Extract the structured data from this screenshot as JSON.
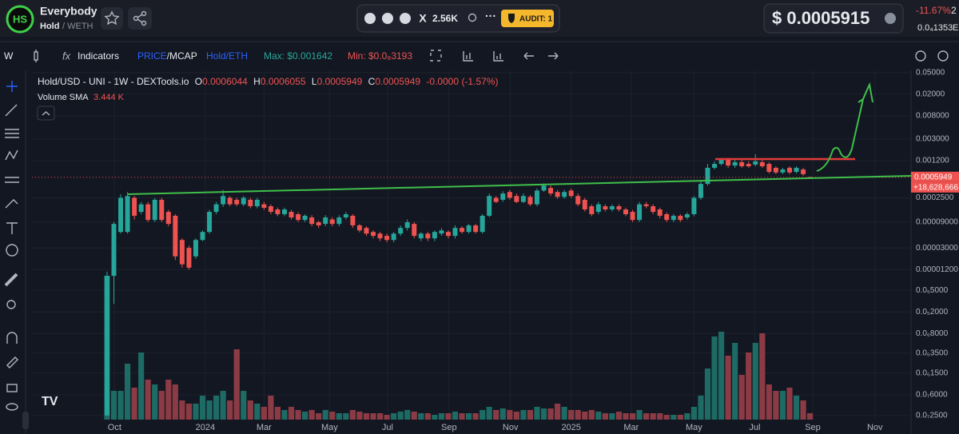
{
  "header": {
    "token_name": "Everybody",
    "pair_base": "Hold",
    "pair_quote": "/ WETH",
    "social_count": "2.56K",
    "audit": "AUDIT: 1",
    "price": "$ 0.0005915",
    "change": "-11.67%",
    "change_extra": "2",
    "sub_price": "0.0₄1353",
    "sub_extra": "E"
  },
  "toolbar": {
    "interval": "W",
    "indicators": "Indicators",
    "price": "PRICE",
    "mcap": "/MCAP",
    "pair": "Hold/ETH",
    "max": "Max: $0.001642",
    "min": "Min: $0.0₈3193"
  },
  "chart_data": {
    "type": "candlestick",
    "title": "Hold/USD - UNI - 1W - DEXTools.io",
    "ohlc_labels": [
      "O",
      "H",
      "L",
      "C"
    ],
    "change": "-0.0000 (-1.57%)",
    "volume_label": "Volume SMA",
    "volume_sma": "3.444 K",
    "price_badge_extra": "+18,628,666",
    "up_color": "#26a69a",
    "down_color": "#ef5350",
    "volume_up_color": "#1d6b64",
    "volume_down_color": "#8c3b45",
    "log_y": true,
    "ylim": [
      2.1e-08,
      0.055
    ],
    "yticks": [
      {
        "value": 0.05,
        "label": "0.05000"
      },
      {
        "value": 0.02,
        "label": "0.02000"
      },
      {
        "value": 0.008,
        "label": "0.008000"
      },
      {
        "value": 0.003,
        "label": "0.003000"
      },
      {
        "value": 0.0012,
        "label": "0.001200"
      },
      {
        "value": 0.00025,
        "label": "0.0002500"
      },
      {
        "value": 9e-05,
        "label": "0.00009000"
      },
      {
        "value": 3e-05,
        "label": "0.00003000"
      },
      {
        "value": 1.2e-05,
        "label": "0.00001200"
      },
      {
        "value": 5e-06,
        "label": "0.0₅5000"
      },
      {
        "value": 2e-06,
        "label": "0.0₅2000"
      },
      {
        "value": 8e-07,
        "label": "0.0₆8000"
      },
      {
        "value": 3.5e-07,
        "label": "0.0₆3500"
      },
      {
        "value": 1.5e-07,
        "label": "0.0₆1500"
      },
      {
        "value": 6e-08,
        "label": "0.0₇6000"
      },
      {
        "value": 2.5e-08,
        "label": "0.0₇2500"
      }
    ],
    "xlim": [
      -11,
      117.8
    ],
    "xticks": [
      {
        "value": 1.1,
        "label": "Oct"
      },
      {
        "value": 14.4,
        "label": "2024"
      },
      {
        "value": 23.0,
        "label": "Mar"
      },
      {
        "value": 32.6,
        "label": "May"
      },
      {
        "value": 41.1,
        "label": "Jul"
      },
      {
        "value": 50.1,
        "label": "Sep"
      },
      {
        "value": 59.1,
        "label": "Nov"
      },
      {
        "value": 68.0,
        "label": "2025"
      },
      {
        "value": 76.8,
        "label": "Mar"
      },
      {
        "value": 86.0,
        "label": "May"
      },
      {
        "value": 94.9,
        "label": "Jul"
      },
      {
        "value": 103.4,
        "label": "Sep"
      },
      {
        "value": 112.5,
        "label": "Nov"
      }
    ],
    "volume_lim": [
      0,
      50
    ],
    "candles": [
      [
        2.5e-08,
        1.1e-05,
        2.5e-08,
        9.2e-06
      ],
      [
        9.2e-06,
        9e-05,
        2.8e-06,
        8.3e-05
      ],
      [
        5.9e-05,
        0.00029,
        5.5e-05,
        0.00025
      ],
      [
        5.9e-05,
        0.00032,
        5.5e-05,
        0.00027
      ],
      [
        0.00025,
        0.00027,
        0.0001,
        0.000117
      ],
      [
        0.000138,
        0.00021,
        0.000125,
        0.00019
      ],
      [
        0.00019,
        0.00021,
        9e-05,
        9.8e-05
      ],
      [
        9.8e-05,
        0.00025,
        9e-05,
        0.00023
      ],
      [
        0.00023,
        0.00025,
        9e-05,
        9.8e-05
      ],
      [
        0.000138,
        0.00015,
        7.5e-05,
        8.3e-05
      ],
      [
        0.000117,
        0.000125,
        1.8e-05,
        2.1e-05
      ],
      [
        4.2e-05,
        4.5e-05,
        1.3e-05,
        1.5e-05
      ],
      [
        3e-05,
        3.3e-05,
        1.2e-05,
        1.3e-05
      ],
      [
        2.1e-05,
        4.5e-05,
        1.9e-05,
        4.2e-05
      ],
      [
        4.2e-05,
        6.3e-05,
        4e-05,
        5.9e-05
      ],
      [
        5.9e-05,
        0.00015,
        5.5e-05,
        0.000138
      ],
      [
        0.000138,
        0.00021,
        0.000125,
        0.00019
      ],
      [
        0.00019,
        0.00035,
        0.00017,
        0.00027
      ],
      [
        0.00025,
        0.00027,
        0.000175,
        0.00019
      ],
      [
        0.00023,
        0.00025,
        0.000175,
        0.00019
      ],
      [
        0.00019,
        0.00027,
        0.000175,
        0.00025
      ],
      [
        0.00023,
        0.00025,
        0.00016,
        0.000175
      ],
      [
        0.000175,
        0.00025,
        0.00016,
        0.00023
      ],
      [
        0.00019,
        0.00021,
        0.00015,
        0.000164
      ],
      [
        0.000175,
        0.00019,
        0.000125,
        0.000138
      ],
      [
        0.000153,
        0.000165,
        0.000115,
        0.000125
      ],
      [
        0.000125,
        0.000165,
        0.000115,
        0.000153
      ],
      [
        0.000138,
        0.00015,
        0.0001,
        0.000109
      ],
      [
        0.000125,
        0.000135,
        9e-05,
        9.8e-05
      ],
      [
        9.8e-05,
        0.000125,
        9e-05,
        0.000117
      ],
      [
        0.000109,
        0.00012,
        7.5e-05,
        8.3e-05
      ],
      [
        8.9e-05,
        9.5e-05,
        7e-05,
        7.8e-05
      ],
      [
        8.3e-05,
        0.00012,
        7.5e-05,
        0.000109
      ],
      [
        0.0001,
        0.00011,
        7.5e-05,
        8.3e-05
      ],
      [
        8.3e-05,
        0.00012,
        7.5e-05,
        0.000109
      ],
      [
        0.000109,
        0.000138,
        0.0001,
        0.000125
      ],
      [
        0.000117,
        0.000125,
        7e-05,
        7.8e-05
      ],
      [
        7.8e-05,
        8.3e-05,
        5.8e-05,
        6.3e-05
      ],
      [
        7e-05,
        7.5e-05,
        5e-05,
        5.5e-05
      ],
      [
        5.9e-05,
        6.3e-05,
        4.5e-05,
        5e-05
      ],
      [
        5.5e-05,
        5.9e-05,
        4e-05,
        4.5e-05
      ],
      [
        5e-05,
        5.5e-05,
        3.8e-05,
        4.2e-05
      ],
      [
        4.2e-05,
        5.9e-05,
        3.8e-05,
        5.5e-05
      ],
      [
        5.5e-05,
        7.8e-05,
        5e-05,
        7e-05
      ],
      [
        7e-05,
        0.0001,
        6.3e-05,
        8.9e-05
      ],
      [
        8.3e-05,
        9e-05,
        4.5e-05,
        5e-05
      ],
      [
        4.5e-05,
        5.9e-05,
        4e-05,
        5.5e-05
      ],
      [
        5.5e-05,
        5.9e-05,
        4e-05,
        4.5e-05
      ],
      [
        4.5e-05,
        6.3e-05,
        4e-05,
        5.9e-05
      ],
      [
        5.5e-05,
        7e-05,
        5e-05,
        6.3e-05
      ],
      [
        5.9e-05,
        6.3e-05,
        4.5e-05,
        5e-05
      ],
      [
        5e-05,
        7.8e-05,
        4.5e-05,
        7e-05
      ],
      [
        7e-05,
        7.5e-05,
        5.5e-05,
        5.9e-05
      ],
      [
        5.9e-05,
        8.3e-05,
        5.5e-05,
        7.8e-05
      ],
      [
        7.8e-05,
        8.3e-05,
        5.5e-05,
        5.9e-05
      ],
      [
        5.9e-05,
        0.000125,
        5.5e-05,
        0.000117
      ],
      [
        0.000117,
        0.0003,
        0.00011,
        0.00027
      ],
      [
        0.00025,
        0.00027,
        0.0002,
        0.00021
      ],
      [
        0.00023,
        0.00033,
        0.00021,
        0.0003
      ],
      [
        0.00032,
        0.00035,
        0.00023,
        0.00025
      ],
      [
        0.00027,
        0.0003,
        0.0002,
        0.00021
      ],
      [
        0.00021,
        0.0003,
        0.0002,
        0.00027
      ],
      [
        0.00026,
        0.00028,
        0.000175,
        0.00019
      ],
      [
        0.00019,
        0.00037,
        0.000175,
        0.00034
      ],
      [
        0.00034,
        0.00046,
        0.00032,
        0.00042
      ],
      [
        0.00038,
        0.00042,
        0.00027,
        0.0003
      ],
      [
        0.00032,
        0.00035,
        0.00024,
        0.00026
      ],
      [
        0.00026,
        0.00035,
        0.00024,
        0.00032
      ],
      [
        0.00034,
        0.00037,
        0.00025,
        0.00027
      ],
      [
        0.00027,
        0.0003,
        0.000175,
        0.00019
      ],
      [
        0.00023,
        0.00025,
        0.00014,
        0.000153
      ],
      [
        0.000175,
        0.00019,
        0.000115,
        0.000125
      ],
      [
        0.000138,
        0.00021,
        0.000125,
        0.00019
      ],
      [
        0.000175,
        0.00019,
        0.00014,
        0.000153
      ],
      [
        0.000153,
        0.00019,
        0.00014,
        0.000175
      ],
      [
        0.000175,
        0.00019,
        0.00014,
        0.000153
      ],
      [
        0.000153,
        0.000165,
        0.000115,
        0.000125
      ],
      [
        0.000138,
        0.00015,
        9e-05,
        9.8e-05
      ],
      [
        9.8e-05,
        0.00021,
        9e-05,
        0.00019
      ],
      [
        0.00019,
        0.00021,
        0.00016,
        0.000175
      ],
      [
        0.000175,
        0.00019,
        0.000125,
        0.000138
      ],
      [
        0.000153,
        0.000165,
        0.000105,
        0.000117
      ],
      [
        0.000125,
        0.000135,
        9e-05,
        9.8e-05
      ],
      [
        9.8e-05,
        0.000125,
        9e-05,
        0.000117
      ],
      [
        0.000117,
        0.000125,
        9e-05,
        9.8e-05
      ],
      [
        0.000109,
        0.000135,
        0.0001,
        0.000125
      ],
      [
        0.000125,
        0.00027,
        0.000115,
        0.00025
      ],
      [
        0.00025,
        0.0005,
        0.00023,
        0.00045
      ],
      [
        0.00045,
        0.00105,
        0.00042,
        0.00089
      ],
      [
        0.00089,
        0.00117,
        0.00083,
        0.00105
      ],
      [
        0.00105,
        0.00135,
        0.00098,
        0.00125
      ],
      [
        0.00125,
        0.00135,
        0.00089,
        0.00098
      ],
      [
        0.00098,
        0.00125,
        0.00089,
        0.00113
      ],
      [
        0.00113,
        0.00125,
        0.00089,
        0.00095
      ],
      [
        0.00105,
        0.00117,
        0.00089,
        0.00095
      ],
      [
        0.00102,
        0.00158,
        0.00095,
        0.00117
      ],
      [
        0.00113,
        0.00125,
        0.00089,
        0.00095
      ],
      [
        0.00105,
        0.00113,
        0.0007,
        0.00075
      ],
      [
        0.00089,
        0.00095,
        0.00068,
        0.00073
      ],
      [
        0.00073,
        0.00089,
        0.00068,
        0.00083
      ],
      [
        0.00089,
        0.00095,
        0.00068,
        0.00073
      ],
      [
        0.00075,
        0.00095,
        0.0007,
        0.00089
      ],
      [
        0.00083,
        0.00089,
        0.00063,
        0.00068
      ],
      [
        0.0006044,
        0.0006055,
        0.0005949,
        0.0005949
      ]
    ],
    "volumes": [
      45,
      9,
      9,
      17.5,
      10,
      21,
      12.5,
      11,
      9,
      12.5,
      11,
      6,
      5,
      5,
      7.5,
      6,
      7.5,
      9,
      6,
      22,
      9,
      6,
      5,
      4,
      7.5,
      4,
      3,
      4,
      3,
      2.5,
      3,
      2,
      3,
      2.5,
      2,
      2,
      3,
      2.5,
      2,
      2,
      2,
      1.5,
      2,
      2.5,
      3,
      2.5,
      2,
      2,
      1.5,
      2,
      2,
      2.5,
      2,
      2,
      2,
      3,
      4,
      3,
      3.5,
      3,
      2.5,
      3,
      3,
      4,
      3.5,
      3.5,
      5,
      4,
      3,
      3,
      2.5,
      3,
      2.5,
      2,
      2,
      2.5,
      2,
      2,
      3,
      2,
      2,
      2,
      1.5,
      1.5,
      1.5,
      2,
      4,
      7.5,
      16,
      26,
      27.5,
      20,
      24,
      14,
      21,
      24,
      27,
      11,
      9,
      9,
      10,
      7.5,
      6,
      2
    ]
  }
}
